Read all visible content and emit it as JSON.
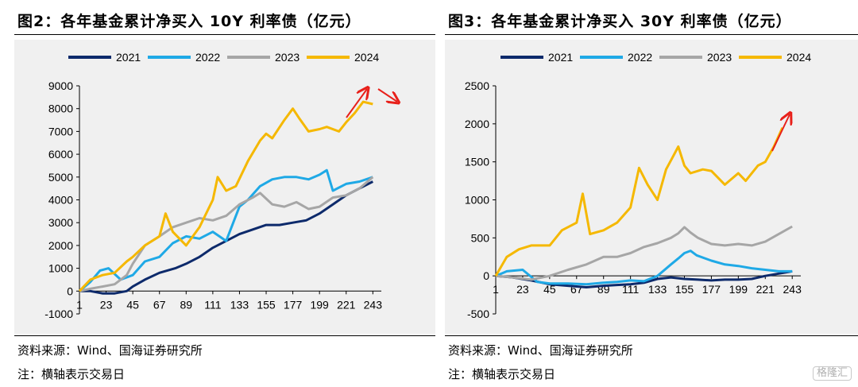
{
  "figures": [
    {
      "title": "图2：各年基金累计净买入 10Y 利率债（亿元）",
      "source": "资料来源：Wind、国海证券研究所",
      "note": "注：横轴表示交易日"
    },
    {
      "title": "图3：各年基金累计净买入 30Y 利率债（亿元）",
      "source": "资料来源：Wind、国海证券研究所",
      "note": "注：横轴表示交易日"
    }
  ],
  "watermark": "格隆汇",
  "chart_data": [
    {
      "type": "line",
      "title": "",
      "xlabel": "",
      "ylabel": "",
      "xlim": [
        1,
        250
      ],
      "ylim": [
        -1000,
        9000
      ],
      "yticks": [
        -1000,
        0,
        1000,
        2000,
        3000,
        4000,
        5000,
        6000,
        7000,
        8000,
        9000
      ],
      "xticks": [
        1,
        23,
        45,
        67,
        89,
        111,
        133,
        155,
        177,
        199,
        221,
        243
      ],
      "legend_position": "top",
      "grid": false,
      "series": [
        {
          "name": "2021",
          "color": "#0d2a6b",
          "x": [
            1,
            10,
            20,
            30,
            40,
            45,
            55,
            67,
            80,
            89,
            100,
            111,
            122,
            133,
            144,
            155,
            166,
            177,
            188,
            199,
            210,
            221,
            232,
            243
          ],
          "y": [
            0,
            0,
            -100,
            -100,
            0,
            200,
            500,
            800,
            1000,
            1200,
            1500,
            1900,
            2200,
            2500,
            2700,
            2900,
            2900,
            3000,
            3100,
            3400,
            3800,
            4200,
            4500,
            4800
          ]
        },
        {
          "name": "2022",
          "color": "#1fa9e6",
          "x": [
            1,
            10,
            18,
            25,
            35,
            45,
            55,
            67,
            78,
            89,
            100,
            111,
            122,
            133,
            140,
            150,
            160,
            170,
            180,
            190,
            199,
            205,
            210,
            221,
            232,
            243
          ],
          "y": [
            0,
            400,
            900,
            1000,
            500,
            700,
            1300,
            1500,
            2100,
            2400,
            2300,
            2600,
            2200,
            3700,
            4000,
            4600,
            4900,
            5000,
            5000,
            4900,
            5100,
            5300,
            4400,
            4700,
            4800,
            5000
          ]
        },
        {
          "name": "2023",
          "color": "#a6a6a6",
          "x": [
            1,
            10,
            20,
            30,
            40,
            45,
            55,
            67,
            78,
            89,
            100,
            111,
            122,
            133,
            144,
            150,
            160,
            170,
            180,
            190,
            199,
            210,
            221,
            232,
            243
          ],
          "y": [
            0,
            100,
            200,
            300,
            700,
            1200,
            2000,
            2400,
            2800,
            3000,
            3200,
            3100,
            3300,
            3800,
            4100,
            4300,
            3800,
            3700,
            3900,
            3600,
            3700,
            4100,
            4200,
            4500,
            5000
          ]
        },
        {
          "name": "2024",
          "color": "#f5b800",
          "x": [
            1,
            10,
            20,
            30,
            40,
            45,
            55,
            67,
            72,
            78,
            89,
            100,
            111,
            115,
            122,
            130,
            140,
            150,
            155,
            160,
            170,
            177,
            182,
            190,
            199,
            205,
            215,
            221,
            228,
            235,
            243
          ],
          "y": [
            0,
            500,
            700,
            800,
            1300,
            1500,
            2000,
            2400,
            3400,
            2600,
            2000,
            2800,
            4000,
            5000,
            4400,
            4600,
            5700,
            6600,
            6900,
            6700,
            7500,
            8000,
            7600,
            7000,
            7100,
            7200,
            7000,
            7400,
            7800,
            8300,
            8200
          ]
        }
      ]
    },
    {
      "type": "line",
      "title": "",
      "xlabel": "",
      "ylabel": "",
      "xlim": [
        1,
        250
      ],
      "ylim": [
        -500,
        2500
      ],
      "yticks": [
        -500,
        0,
        500,
        1000,
        1500,
        2000,
        2500
      ],
      "xticks": [
        1,
        23,
        45,
        67,
        89,
        111,
        133,
        155,
        177,
        199,
        221,
        243
      ],
      "legend_position": "top",
      "grid": false,
      "series": [
        {
          "name": "2021",
          "color": "#0d2a6b",
          "x": [
            1,
            15,
            30,
            45,
            60,
            75,
            89,
            100,
            111,
            122,
            133,
            144,
            155,
            166,
            177,
            188,
            199,
            210,
            221,
            232,
            243
          ],
          "y": [
            0,
            -20,
            -60,
            -110,
            -130,
            -150,
            -130,
            -120,
            -110,
            -90,
            -40,
            -20,
            -40,
            -50,
            -60,
            -50,
            -50,
            -40,
            0,
            30,
            60
          ]
        },
        {
          "name": "2022",
          "color": "#1fa9e6",
          "x": [
            1,
            10,
            23,
            35,
            45,
            60,
            75,
            89,
            100,
            111,
            122,
            133,
            144,
            150,
            155,
            160,
            165,
            177,
            188,
            199,
            210,
            221,
            232,
            243
          ],
          "y": [
            0,
            60,
            80,
            -80,
            -100,
            -100,
            -110,
            -90,
            -80,
            -60,
            -70,
            0,
            150,
            230,
            300,
            330,
            270,
            200,
            150,
            130,
            100,
            80,
            60,
            60
          ]
        },
        {
          "name": "2023",
          "color": "#a6a6a6",
          "x": [
            1,
            15,
            30,
            45,
            60,
            75,
            89,
            100,
            111,
            122,
            133,
            144,
            150,
            155,
            160,
            166,
            177,
            188,
            199,
            210,
            221,
            232,
            243
          ],
          "y": [
            0,
            -20,
            -50,
            0,
            80,
            150,
            250,
            250,
            300,
            380,
            430,
            500,
            560,
            640,
            570,
            500,
            420,
            400,
            420,
            400,
            450,
            550,
            650
          ]
        },
        {
          "name": "2024",
          "color": "#f5b800",
          "x": [
            1,
            10,
            20,
            30,
            45,
            55,
            67,
            72,
            78,
            89,
            100,
            111,
            118,
            125,
            133,
            140,
            145,
            150,
            155,
            160,
            170,
            177,
            188,
            199,
            205,
            215,
            221,
            228,
            235
          ],
          "y": [
            0,
            250,
            350,
            400,
            400,
            600,
            700,
            1080,
            550,
            600,
            700,
            900,
            1420,
            1200,
            1000,
            1400,
            1550,
            1700,
            1450,
            1350,
            1400,
            1380,
            1200,
            1350,
            1250,
            1450,
            1500,
            1700,
            1950
          ]
        }
      ]
    }
  ]
}
